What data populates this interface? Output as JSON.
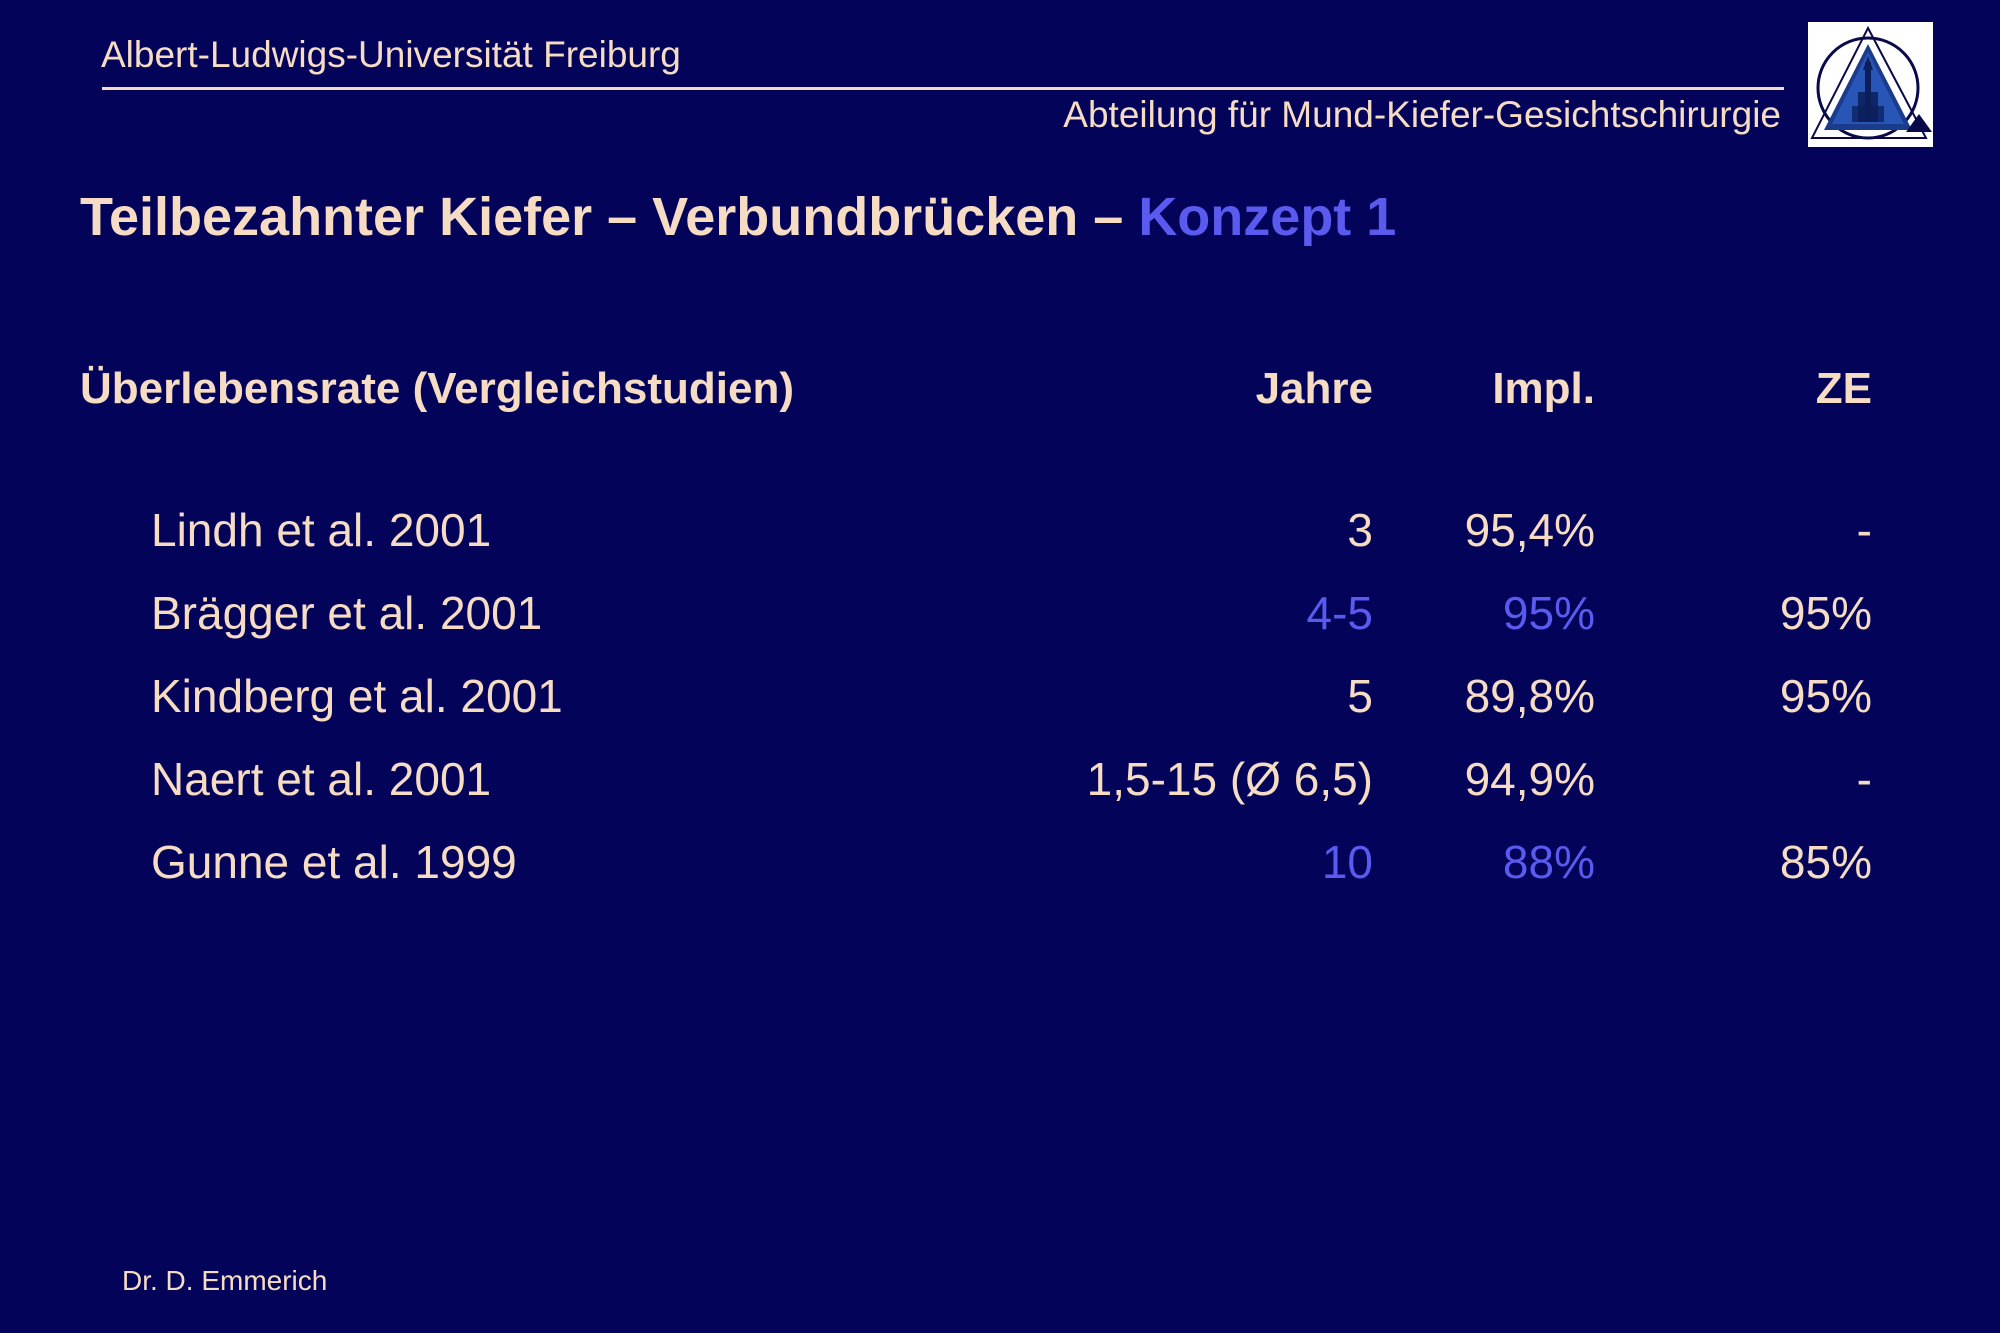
{
  "header": {
    "university": "Albert-Ludwigs-Universität Freiburg",
    "department": "Abteilung für Mund-Kiefer-Gesichtschirurgie"
  },
  "title": {
    "main": "Teilbezahnter Kiefer – Verbundbrücken – ",
    "accent": "Konzept 1"
  },
  "table": {
    "headers": {
      "study": "Überlebensrate (Vergleichstudien)",
      "years": "Jahre",
      "impl": "Impl.",
      "ze": "ZE"
    },
    "rows": [
      {
        "study": "Lindh et al. 2001",
        "years": "3",
        "impl": "95,4%",
        "ze": "-"
      },
      {
        "study": "Brägger et al. 2001",
        "years": "4-5",
        "impl": "95%",
        "ze": "95%"
      },
      {
        "study": "Kindberg et al. 2001",
        "years": "5",
        "impl": "89,8%",
        "ze": "95%"
      },
      {
        "study": "Naert et al. 2001",
        "years": "1,5-15 (Ø 6,5)",
        "impl": "94,9%",
        "ze": "-"
      },
      {
        "study": "Gunne et al. 1999",
        "years": "10",
        "impl": "88%",
        "ze": "85%"
      }
    ]
  },
  "footer": {
    "author": "Dr. D. Emmerich"
  },
  "colors": {
    "background": "#03035a",
    "text": "#f7dcc4",
    "accent": "#5a5aee"
  },
  "icons": {
    "logo": "university-triangle-cathedral-logo"
  }
}
